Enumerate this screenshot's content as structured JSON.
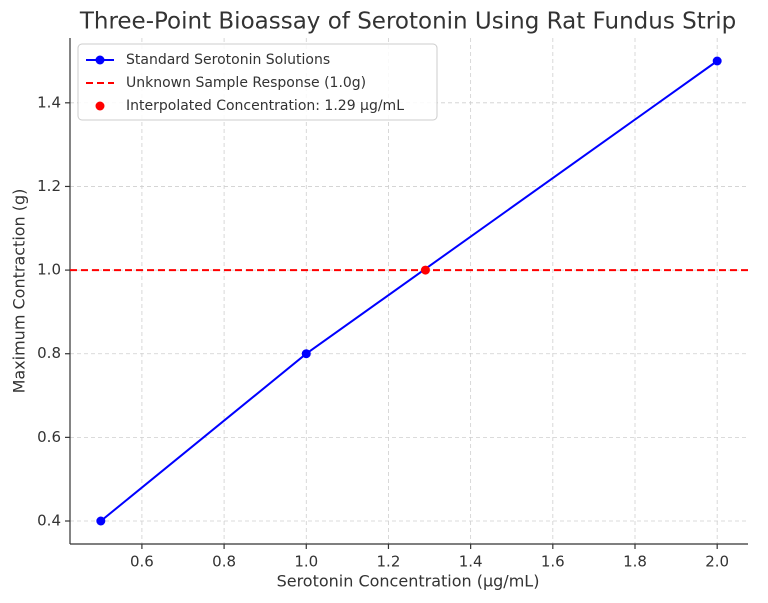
{
  "chart_data": {
    "type": "line",
    "title": "Three-Point Bioassay of Serotonin Using Rat Fundus Strip",
    "x_label": "Serotonin Concentration (µg/mL)",
    "y_label": "Maximum Contraction (g)",
    "series": [
      {
        "name": "Standard Serotonin Solutions",
        "kind": "line",
        "color": "#0000ff",
        "marker": true,
        "linestyle": "solid",
        "x": [
          0.5,
          1.0,
          2.0
        ],
        "values": [
          0.4,
          0.8,
          1.5
        ]
      },
      {
        "name": "Unknown Sample Response (1.0g)",
        "kind": "hline",
        "color": "#ff0000",
        "linestyle": "dashed",
        "values": [
          1.0
        ]
      },
      {
        "name": "Interpolated Concentration: 1.29 µg/mL",
        "kind": "scatter",
        "color": "#ff0000",
        "x": [
          1.29
        ],
        "values": [
          1.0
        ]
      }
    ],
    "xlim": [
      0.425,
      2.075
    ],
    "ylim": [
      0.345,
      1.555
    ],
    "xticks": [
      0.6,
      0.8,
      {
        "value": 1.0,
        "label": "1.0"
      },
      1.2,
      1.4,
      1.6,
      1.8,
      {
        "value": 2.0,
        "label": "2.0"
      }
    ],
    "yticks": [
      0.4,
      0.6,
      0.8,
      {
        "value": 1.0,
        "label": "1.0"
      },
      1.2,
      1.4
    ],
    "grid": true,
    "legend": "upper-left"
  }
}
